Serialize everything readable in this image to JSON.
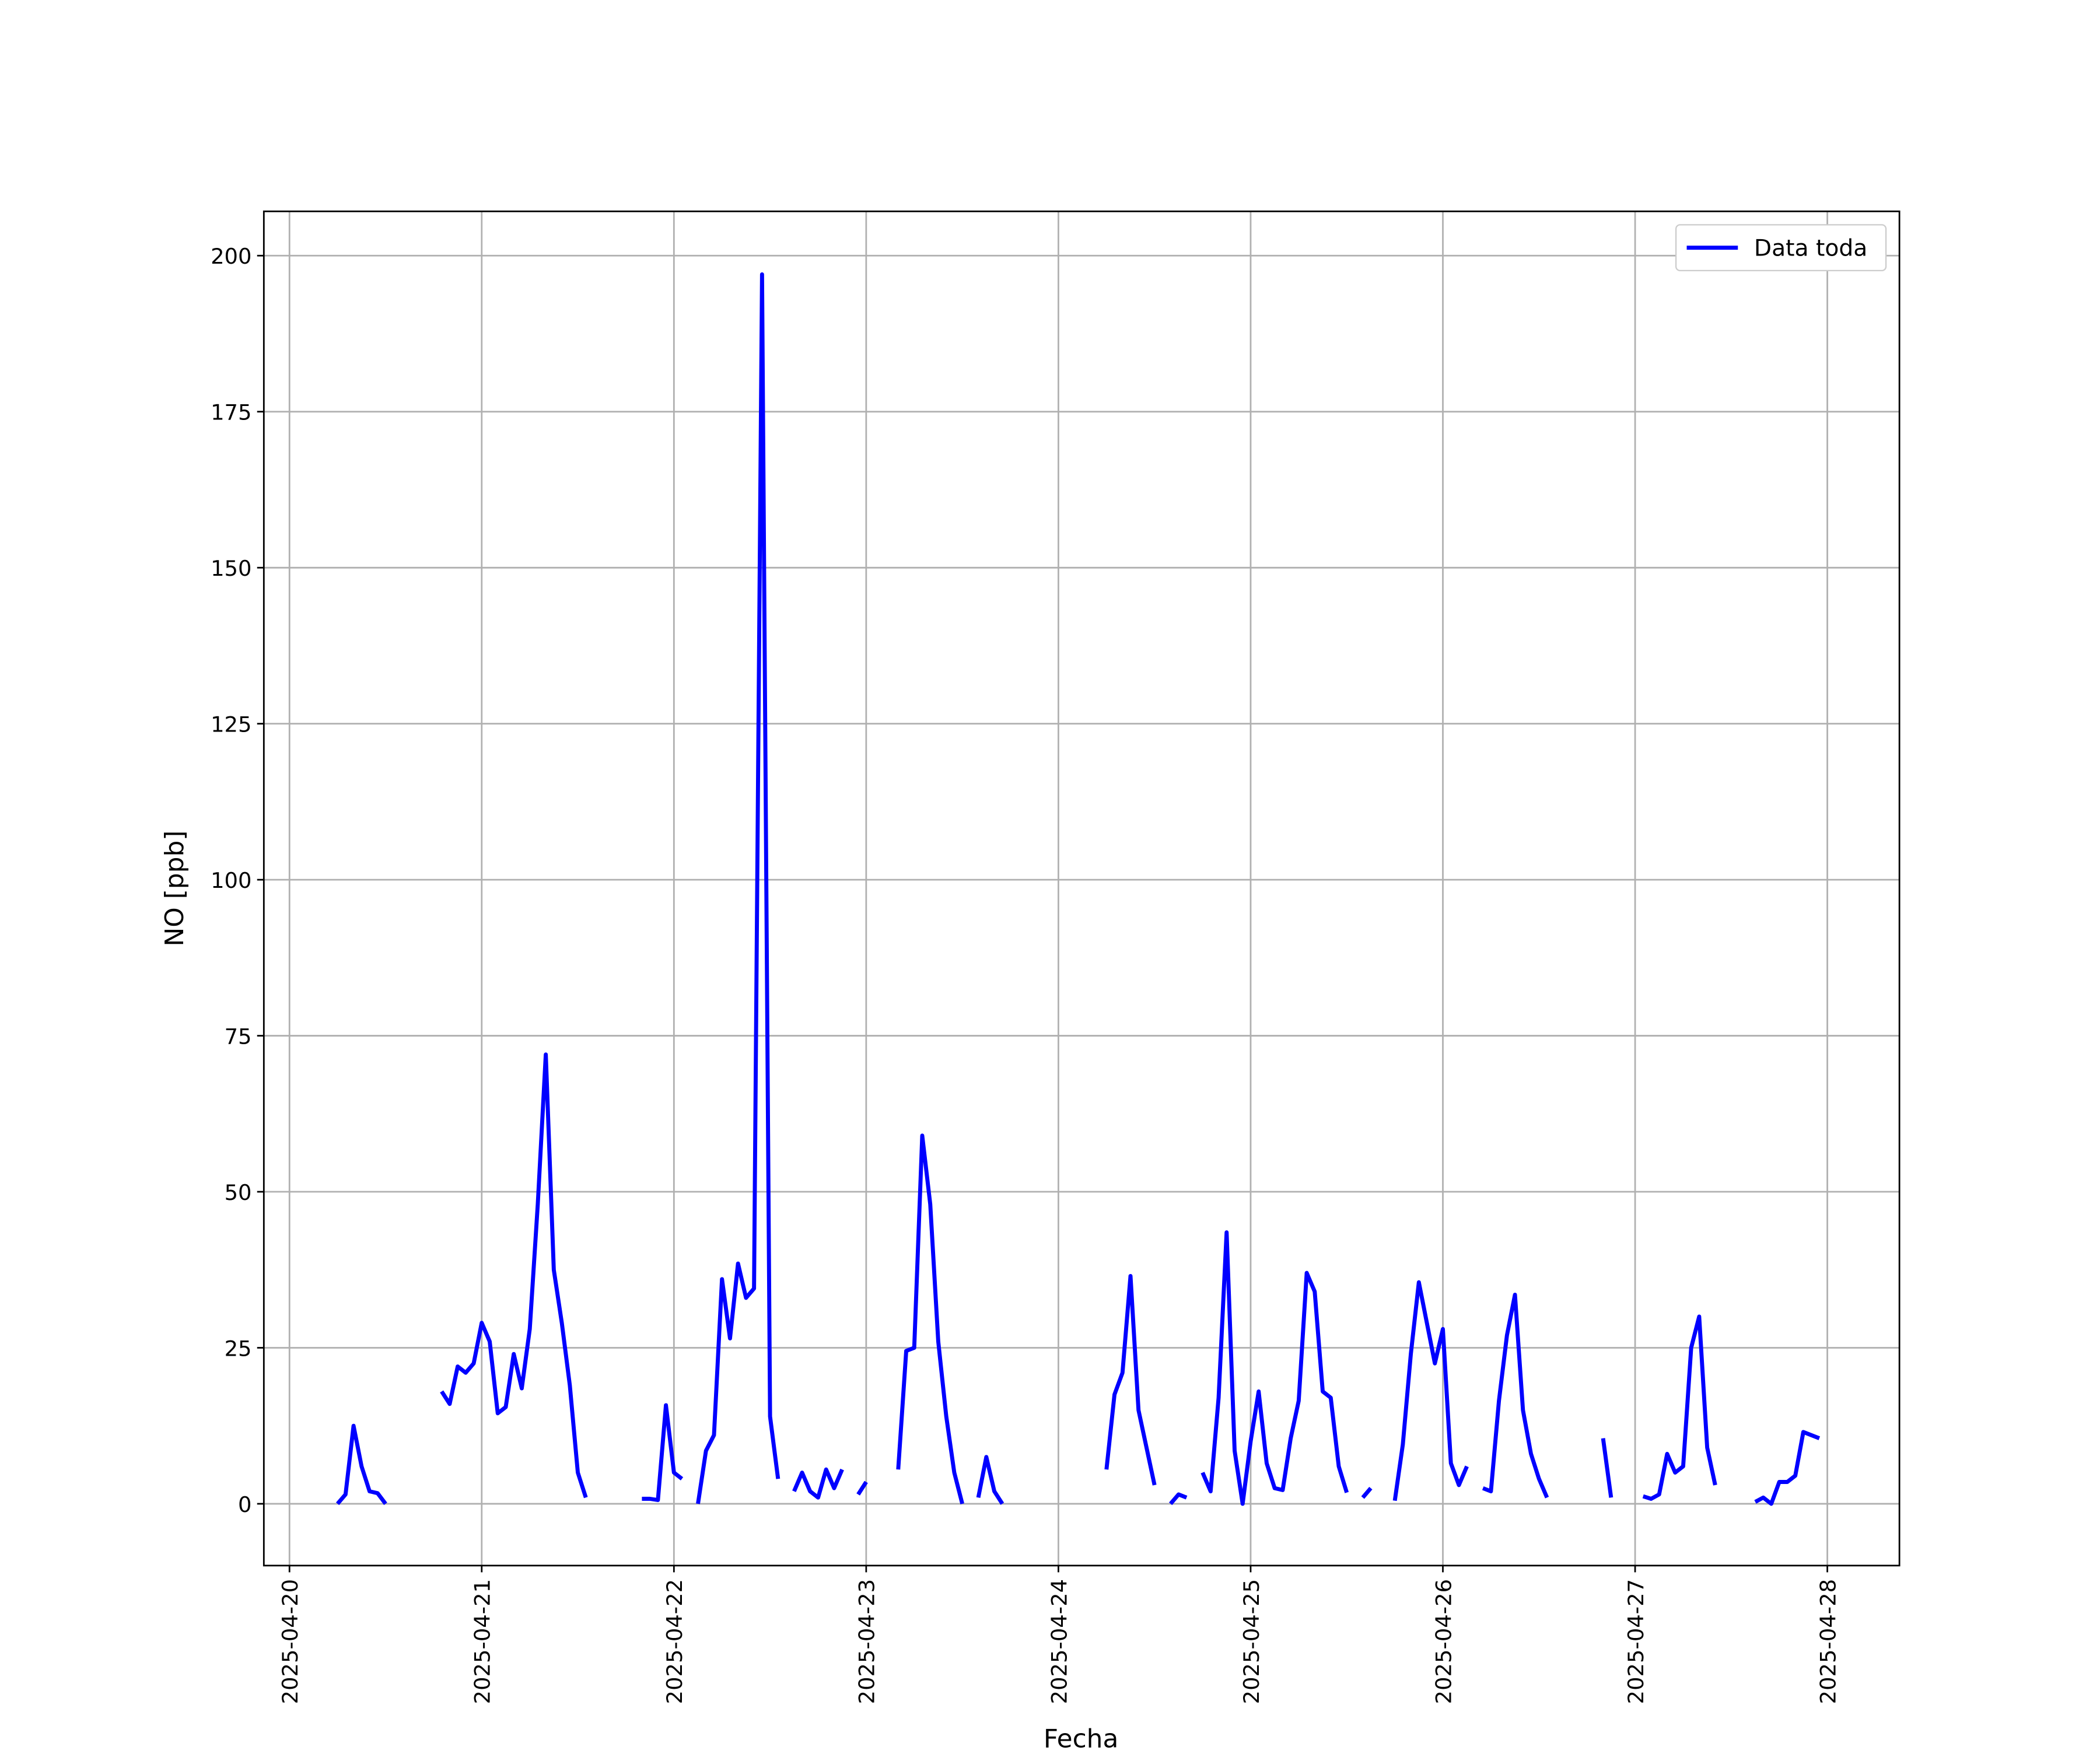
{
  "chart_data": {
    "type": "line",
    "xlabel": "Fecha",
    "ylabel": "NO [ppb]",
    "xlim": [
      "2025-04-19 20:48",
      "2025-04-28 09:00"
    ],
    "xticks": [
      "2025-04-20",
      "2025-04-21",
      "2025-04-22",
      "2025-04-23",
      "2025-04-24",
      "2025-04-25",
      "2025-04-26",
      "2025-04-27",
      "2025-04-28"
    ],
    "ylim": [
      -9.9,
      207.1
    ],
    "yticks": [
      0,
      25,
      50,
      75,
      100,
      125,
      150,
      175,
      200
    ],
    "grid": true,
    "legend": "upper right",
    "x": [
      "2025-04-20 06:00",
      "2025-04-20 07:00",
      "2025-04-20 08:00",
      "2025-04-20 09:00",
      "2025-04-20 10:00",
      "2025-04-20 11:00",
      "2025-04-20 12:00",
      "2025-04-20 13:00",
      "2025-04-20 19:00",
      "2025-04-20 20:00",
      "2025-04-20 21:00",
      "2025-04-20 22:00",
      "2025-04-20 23:00",
      "2025-04-21 00:00",
      "2025-04-21 01:00",
      "2025-04-21 02:00",
      "2025-04-21 03:00",
      "2025-04-21 04:00",
      "2025-04-21 05:00",
      "2025-04-21 06:00",
      "2025-04-21 07:00",
      "2025-04-21 08:00",
      "2025-04-21 09:00",
      "2025-04-21 10:00",
      "2025-04-21 11:00",
      "2025-04-21 12:00",
      "2025-04-21 13:00",
      "2025-04-21 14:00",
      "2025-04-21 20:00",
      "2025-04-21 21:00",
      "2025-04-21 22:00",
      "2025-04-21 23:00",
      "2025-04-22 00:00",
      "2025-04-22 01:00",
      "2025-04-22 02:00",
      "2025-04-22 03:00",
      "2025-04-22 04:00",
      "2025-04-22 05:00",
      "2025-04-22 06:00",
      "2025-04-22 07:00",
      "2025-04-22 08:00",
      "2025-04-22 09:00",
      "2025-04-22 10:00",
      "2025-04-22 11:00",
      "2025-04-22 12:00",
      "2025-04-22 13:00",
      "2025-04-22 14:00",
      "2025-04-22 15:00",
      "2025-04-22 16:00",
      "2025-04-22 17:00",
      "2025-04-22 18:00",
      "2025-04-22 19:00",
      "2025-04-22 20:00",
      "2025-04-22 21:00",
      "2025-04-22 22:00",
      "2025-04-22 23:00",
      "2025-04-23 00:00",
      "2025-04-23 01:00",
      "2025-04-23 04:00",
      "2025-04-23 05:00",
      "2025-04-23 06:00",
      "2025-04-23 07:00",
      "2025-04-23 08:00",
      "2025-04-23 09:00",
      "2025-04-23 10:00",
      "2025-04-23 11:00",
      "2025-04-23 12:00",
      "2025-04-23 13:00",
      "2025-04-23 14:00",
      "2025-04-23 15:00",
      "2025-04-23 16:00",
      "2025-04-23 17:00",
      "2025-04-23 18:00",
      "2025-04-24 06:00",
      "2025-04-24 07:00",
      "2025-04-24 08:00",
      "2025-04-24 09:00",
      "2025-04-24 10:00",
      "2025-04-24 11:00",
      "2025-04-24 12:00",
      "2025-04-24 13:00",
      "2025-04-24 14:00",
      "2025-04-24 15:00",
      "2025-04-24 16:00",
      "2025-04-24 17:00",
      "2025-04-24 18:00",
      "2025-04-24 19:00",
      "2025-04-24 20:00",
      "2025-04-24 21:00",
      "2025-04-24 22:00",
      "2025-04-24 23:00",
      "2025-04-25 00:00",
      "2025-04-25 01:00",
      "2025-04-25 02:00",
      "2025-04-25 03:00",
      "2025-04-25 04:00",
      "2025-04-25 05:00",
      "2025-04-25 06:00",
      "2025-04-25 07:00",
      "2025-04-25 08:00",
      "2025-04-25 09:00",
      "2025-04-25 10:00",
      "2025-04-25 11:00",
      "2025-04-25 12:00",
      "2025-04-25 13:00",
      "2025-04-25 14:00",
      "2025-04-25 15:00",
      "2025-04-25 16:00",
      "2025-04-25 18:00",
      "2025-04-25 19:00",
      "2025-04-25 20:00",
      "2025-04-25 21:00",
      "2025-04-25 22:00",
      "2025-04-25 23:00",
      "2025-04-26 00:00",
      "2025-04-26 01:00",
      "2025-04-26 02:00",
      "2025-04-26 03:00",
      "2025-04-26 04:00",
      "2025-04-26 05:00",
      "2025-04-26 06:00",
      "2025-04-26 07:00",
      "2025-04-26 08:00",
      "2025-04-26 09:00",
      "2025-04-26 10:00",
      "2025-04-26 11:00",
      "2025-04-26 12:00",
      "2025-04-26 13:00",
      "2025-04-26 14:00",
      "2025-04-26 20:00",
      "2025-04-26 21:00",
      "2025-04-26 22:00",
      "2025-04-27 01:00",
      "2025-04-27 02:00",
      "2025-04-27 03:00",
      "2025-04-27 04:00",
      "2025-04-27 05:00",
      "2025-04-27 06:00",
      "2025-04-27 07:00",
      "2025-04-27 08:00",
      "2025-04-27 09:00",
      "2025-04-27 10:00",
      "2025-04-27 11:00",
      "2025-04-27 15:00",
      "2025-04-27 16:00",
      "2025-04-27 17:00",
      "2025-04-27 18:00",
      "2025-04-27 19:00",
      "2025-04-27 20:00",
      "2025-04-27 21:00",
      "2025-04-27 22:00",
      "2025-04-27 23:00"
    ],
    "series": [
      {
        "name": "Data toda",
        "color": "#0000ff",
        "values": [
          0,
          1.5,
          12.5,
          6,
          2,
          1.7,
          0,
          null,
          18,
          16,
          22,
          21,
          22.5,
          29,
          26,
          14.5,
          15.5,
          24,
          18.5,
          28,
          48,
          72,
          37.5,
          29,
          19,
          5,
          1,
          null,
          0.8,
          0.8,
          0.6,
          15.8,
          5,
          4,
          null,
          0,
          8.5,
          11,
          36,
          26.5,
          38.5,
          33,
          34.5,
          197,
          14,
          4,
          null,
          2,
          5,
          2,
          1,
          5.5,
          2.5,
          5.5,
          null,
          1.5,
          3.5,
          null,
          5.5,
          24.5,
          25,
          59,
          48,
          26,
          14,
          5,
          0,
          null,
          1,
          7.5,
          2,
          0,
          null,
          5.5,
          17.5,
          21,
          36.5,
          15,
          9,
          3,
          null,
          0,
          1.5,
          1,
          null,
          5,
          2,
          17,
          43.5,
          8.5,
          0,
          10,
          18,
          6.5,
          2.5,
          2.2,
          10.5,
          16.5,
          37,
          34,
          18,
          17,
          6,
          1.8,
          null,
          1,
          2.5,
          null,
          0.5,
          9.5,
          24,
          35.5,
          29,
          22.5,
          28,
          6.5,
          3,
          6,
          null,
          2.5,
          2,
          16.5,
          27,
          33.5,
          15,
          8,
          4,
          1,
          null,
          10.5,
          1,
          null,
          1.2,
          0.8,
          1.5,
          8,
          5,
          6,
          25,
          30,
          9,
          3,
          null,
          0.3,
          1,
          0,
          3.5,
          3.5,
          4.5,
          11.5,
          11,
          10.5
        ]
      }
    ]
  }
}
